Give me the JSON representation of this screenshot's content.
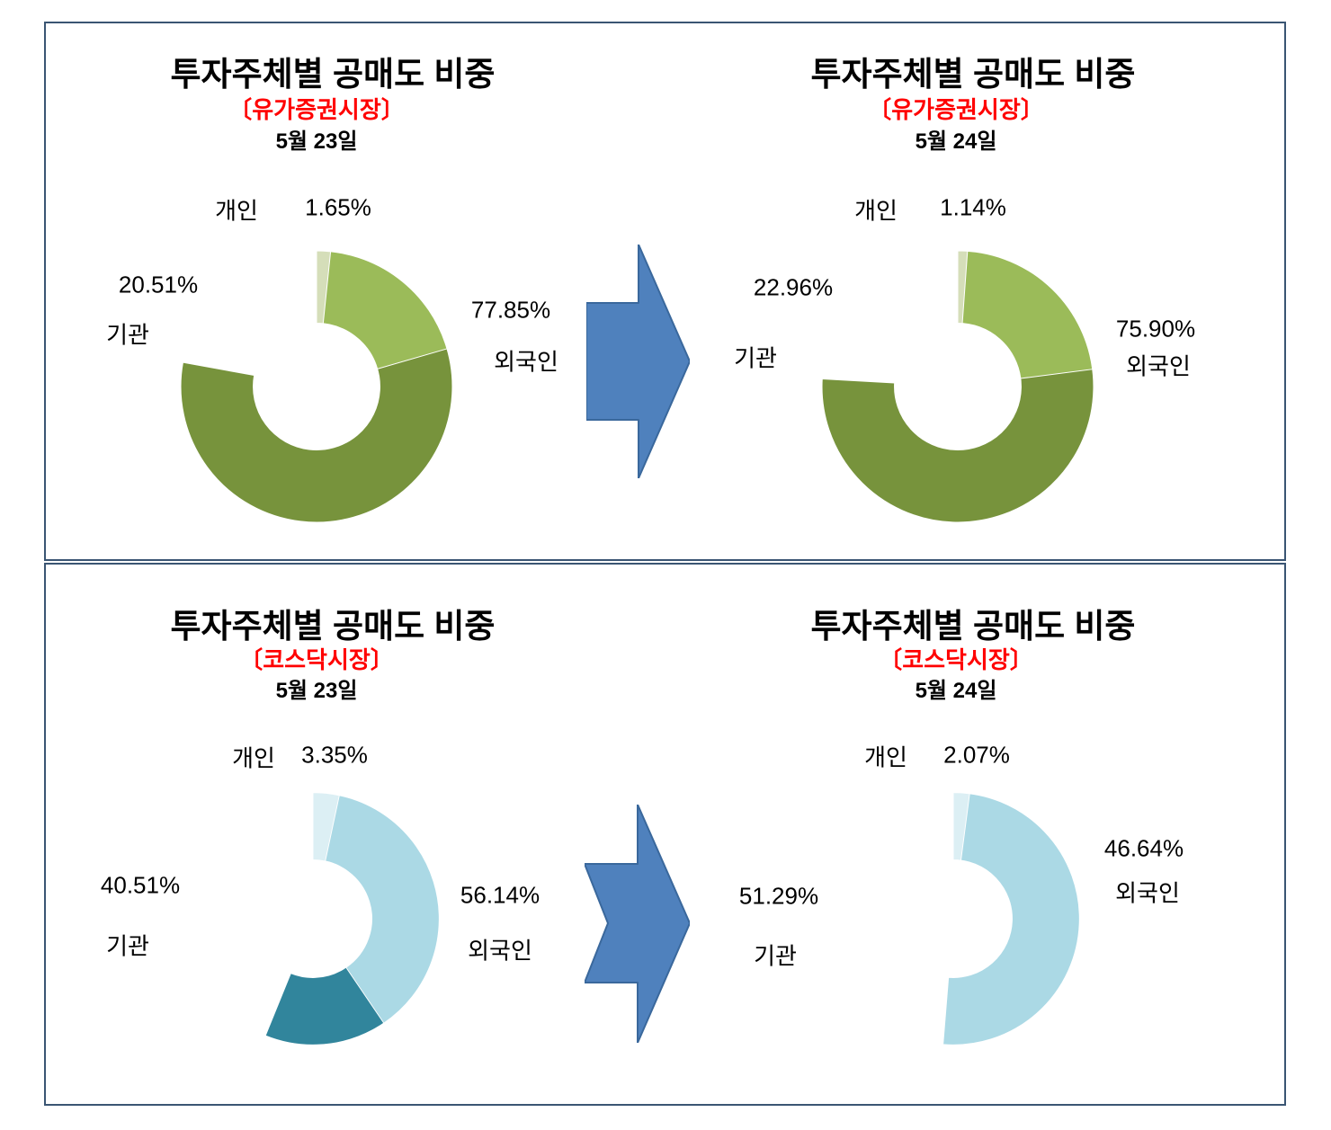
{
  "chart_data": [
    {
      "type": "pie",
      "donut": true,
      "start_angle_deg": 0,
      "direction": "clockwise",
      "title": "투자주체별 공매도 비중",
      "market_label": "〔유가증권시장〕",
      "date": "5월 23일",
      "slices": [
        {
          "key": "foreigner",
          "label": "외국인",
          "value": 77.85,
          "value_text": "77.85%",
          "color": "#77933C"
        },
        {
          "key": "institution",
          "label": "기관",
          "value": 20.51,
          "value_text": "20.51%",
          "color": "#9BBB59"
        },
        {
          "key": "individual",
          "label": "개인",
          "value": 1.65,
          "value_text": "1.65%",
          "color": "#D5DEB9"
        }
      ]
    },
    {
      "type": "pie",
      "donut": true,
      "start_angle_deg": 0,
      "direction": "clockwise",
      "title": "투자주체별 공매도 비중",
      "market_label": "〔유가증권시장〕",
      "date": "5월 24일",
      "slices": [
        {
          "key": "foreigner",
          "label": "외국인",
          "value": 75.9,
          "value_text": "75.90%",
          "color": "#77933C"
        },
        {
          "key": "institution",
          "label": "기관",
          "value": 22.96,
          "value_text": "22.96%",
          "color": "#9BBB59"
        },
        {
          "key": "individual",
          "label": "개인",
          "value": 1.14,
          "value_text": "1.14%",
          "color": "#D5DEB9"
        }
      ]
    },
    {
      "type": "pie",
      "donut": true,
      "start_angle_deg": 0,
      "direction": "clockwise",
      "title": "투자주체별 공매도 비중",
      "market_label": "〔코스닥시장〕",
      "date": "5월 23일",
      "slices": [
        {
          "key": "foreigner",
          "label": "외국인",
          "value": 56.14,
          "value_text": "56.14%",
          "color": "#31859C"
        },
        {
          "key": "institution",
          "label": "기관",
          "value": 40.51,
          "value_text": "40.51%",
          "color": "#ABD9E5"
        },
        {
          "key": "individual",
          "label": "개인",
          "value": 3.35,
          "value_text": "3.35%",
          "color": "#DCEFF4"
        }
      ]
    },
    {
      "type": "pie",
      "donut": true,
      "start_angle_deg": 0,
      "direction": "clockwise",
      "title": "투자주체별 공매도 비중",
      "market_label": "〔코스닥시장〕",
      "date": "5월 24일",
      "slices": [
        {
          "key": "foreigner",
          "label": "외국인",
          "value": 46.64,
          "value_text": "46.64%",
          "color": "#31859C"
        },
        {
          "key": "institution",
          "label": "기관",
          "value": 51.29,
          "value_text": "51.29%",
          "color": "#ABD9E5"
        },
        {
          "key": "individual",
          "label": "개인",
          "value": 2.07,
          "value_text": "2.07%",
          "color": "#DCEFF4"
        }
      ]
    }
  ],
  "decor": {
    "arrow_fill": "#4F81BD",
    "arrow_stroke": "#3A689C",
    "panel_border": "#3A5573",
    "market_label_color": "#FF0000"
  }
}
